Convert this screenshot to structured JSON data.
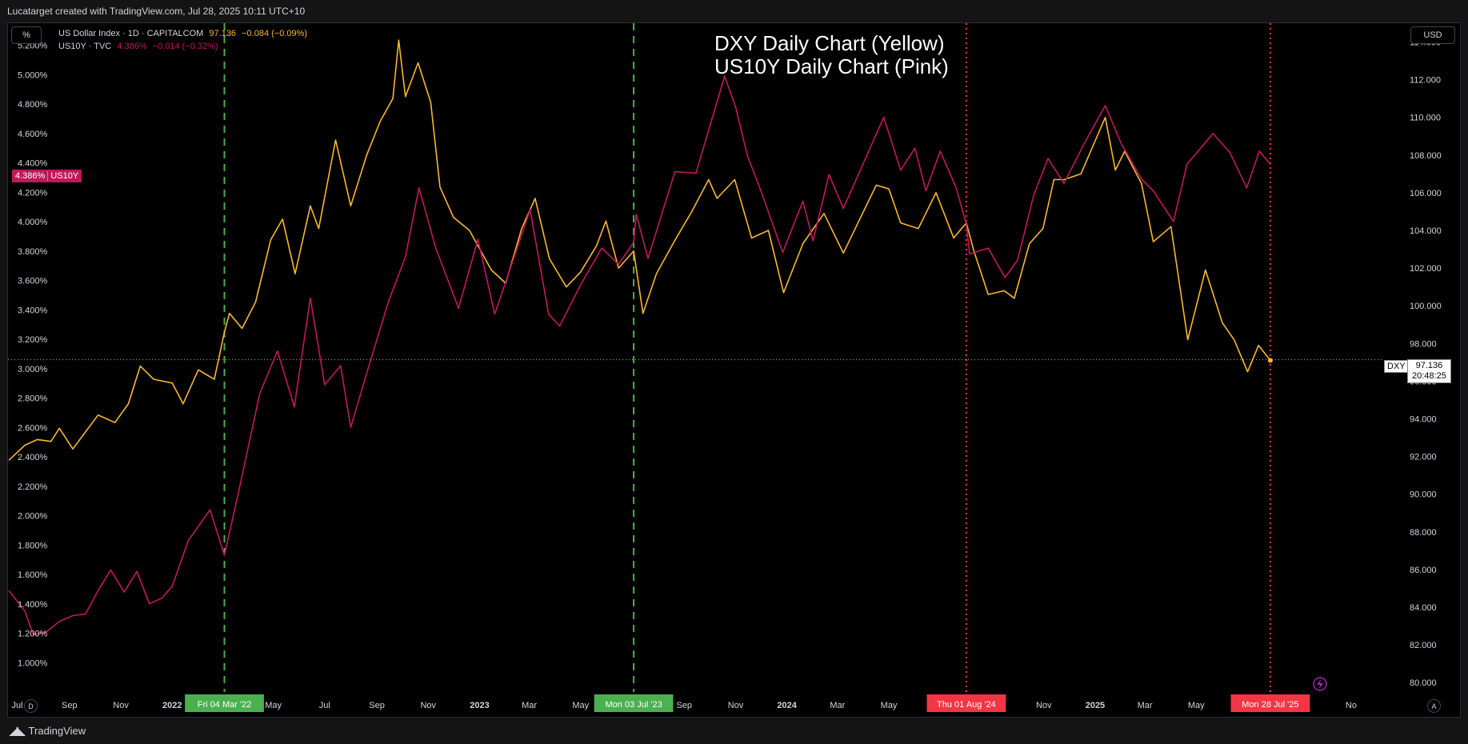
{
  "header": {
    "caption": "Lucatarget created with TradingView.com, Jul 28, 2025 10:11 UTC+10"
  },
  "toolbar": {
    "percent_label": "%",
    "currency_label": "USD",
    "auto_label": "A",
    "goto_label": "D"
  },
  "legend": {
    "dxy": {
      "name": "US Dollar Index · 1D · CAPITALCOM",
      "price": "97.136",
      "change": "−0.084 (−0.09%)"
    },
    "us10y": {
      "name": "US10Y · TVC",
      "price": "4.386%",
      "change": "−0.014 (−0.32%)"
    }
  },
  "annotation": {
    "line1": "DXY Daily Chart (Yellow)",
    "line2": "US10Y Daily Chart (Pink)"
  },
  "price_tags": {
    "us10y_value": "4.386%",
    "us10y_label": "US10Y",
    "dxy_label": "DXY",
    "dxy_value": "97.136",
    "dxy_countdown": "20:48:25"
  },
  "footer": {
    "brand": "TradingView"
  },
  "colors": {
    "dxy": "#f9b82b",
    "us10y": "#c2185b",
    "green_marker": "#4caf50",
    "red_marker": "#f23645",
    "background": "#000000"
  },
  "chart_data": {
    "type": "line",
    "left_axis": {
      "unit": "%",
      "range": [
        0.8,
        5.35
      ],
      "ticks": [
        "1.000%",
        "1.200%",
        "1.400%",
        "1.600%",
        "1.800%",
        "2.000%",
        "2.200%",
        "2.400%",
        "2.600%",
        "2.800%",
        "3.000%",
        "3.200%",
        "3.400%",
        "3.600%",
        "3.800%",
        "4.000%",
        "4.200%",
        "4.400%",
        "4.600%",
        "4.800%",
        "5.000%",
        "5.200%"
      ]
    },
    "right_axis": {
      "unit": "USD",
      "range": [
        79.5,
        115.0
      ],
      "ticks": [
        "80.000",
        "82.000",
        "84.000",
        "86.000",
        "88.000",
        "90.000",
        "92.000",
        "94.000",
        "96.000",
        "98.000",
        "100.000",
        "102.000",
        "104.000",
        "106.000",
        "108.000",
        "110.000",
        "112.000",
        "114.000"
      ]
    },
    "x_axis": {
      "range": [
        "2021-06-20",
        "2025-12-10"
      ],
      "ticks": [
        {
          "date": "2021-07-01",
          "label": "Jul"
        },
        {
          "date": "2021-09-01",
          "label": "Sep"
        },
        {
          "date": "2021-11-01",
          "label": "Nov"
        },
        {
          "date": "2022-01-01",
          "label": "2022"
        },
        {
          "date": "2022-05-01",
          "label": "May"
        },
        {
          "date": "2022-07-01",
          "label": "Jul"
        },
        {
          "date": "2022-09-01",
          "label": "Sep"
        },
        {
          "date": "2022-11-01",
          "label": "Nov"
        },
        {
          "date": "2023-01-01",
          "label": "2023"
        },
        {
          "date": "2023-03-01",
          "label": "Mar"
        },
        {
          "date": "2023-05-01",
          "label": "May"
        },
        {
          "date": "2023-09-01",
          "label": "Sep"
        },
        {
          "date": "2023-11-01",
          "label": "Nov"
        },
        {
          "date": "2024-01-01",
          "label": "2024"
        },
        {
          "date": "2024-03-01",
          "label": "Mar"
        },
        {
          "date": "2024-05-01",
          "label": "May"
        },
        {
          "date": "2024-11-01",
          "label": "Nov"
        },
        {
          "date": "2025-01-01",
          "label": "2025"
        },
        {
          "date": "2025-03-01",
          "label": "Mar"
        },
        {
          "date": "2025-05-01",
          "label": "May"
        },
        {
          "date": "2025-11-01",
          "label": "No"
        }
      ]
    },
    "markers": [
      {
        "date": "2022-03-04",
        "label": "Fri 04 Mar '22",
        "style": "dashed",
        "color": "green"
      },
      {
        "date": "2023-07-03",
        "label": "Mon 03 Jul '23",
        "style": "dashed",
        "color": "green"
      },
      {
        "date": "2024-08-01",
        "label": "Thu 01 Aug '24",
        "style": "dotted",
        "color": "red"
      },
      {
        "date": "2025-07-28",
        "label": "Mon 28 Jul '25",
        "style": "dotted",
        "color": "red"
      }
    ],
    "series": [
      {
        "name": "US Dollar Index · 1D · CAPITALCOM",
        "axis": "right",
        "color": "#f9b82b",
        "points": [
          [
            "2021-06-21",
            91.8
          ],
          [
            "2021-07-10",
            92.6
          ],
          [
            "2021-07-25",
            92.9
          ],
          [
            "2021-08-10",
            92.8
          ],
          [
            "2021-08-20",
            93.5
          ],
          [
            "2021-09-05",
            92.4
          ],
          [
            "2021-09-20",
            93.3
          ],
          [
            "2021-10-05",
            94.2
          ],
          [
            "2021-10-25",
            93.8
          ],
          [
            "2021-11-10",
            94.8
          ],
          [
            "2021-11-24",
            96.8
          ],
          [
            "2021-12-10",
            96.1
          ],
          [
            "2022-01-01",
            95.9
          ],
          [
            "2022-01-14",
            94.8
          ],
          [
            "2022-02-01",
            96.6
          ],
          [
            "2022-02-20",
            96.1
          ],
          [
            "2022-03-04",
            98.6
          ],
          [
            "2022-03-10",
            99.6
          ],
          [
            "2022-03-25",
            98.8
          ],
          [
            "2022-04-10",
            100.2
          ],
          [
            "2022-04-28",
            103.5
          ],
          [
            "2022-05-12",
            104.6
          ],
          [
            "2022-05-27",
            101.7
          ],
          [
            "2022-06-14",
            105.3
          ],
          [
            "2022-06-24",
            104.1
          ],
          [
            "2022-07-14",
            108.8
          ],
          [
            "2022-08-01",
            105.3
          ],
          [
            "2022-08-20",
            108.0
          ],
          [
            "2022-09-05",
            109.8
          ],
          [
            "2022-09-20",
            111.0
          ],
          [
            "2022-09-27",
            114.1
          ],
          [
            "2022-10-05",
            111.1
          ],
          [
            "2022-10-20",
            112.9
          ],
          [
            "2022-11-04",
            110.8
          ],
          [
            "2022-11-15",
            106.3
          ],
          [
            "2022-12-01",
            104.7
          ],
          [
            "2022-12-20",
            104.0
          ],
          [
            "2023-01-15",
            101.9
          ],
          [
            "2023-02-01",
            101.2
          ],
          [
            "2023-02-20",
            104.1
          ],
          [
            "2023-03-08",
            105.7
          ],
          [
            "2023-03-25",
            102.5
          ],
          [
            "2023-04-14",
            101.0
          ],
          [
            "2023-05-01",
            101.8
          ],
          [
            "2023-05-20",
            103.2
          ],
          [
            "2023-05-31",
            104.5
          ],
          [
            "2023-06-15",
            102.0
          ],
          [
            "2023-07-03",
            102.9
          ],
          [
            "2023-07-14",
            99.6
          ],
          [
            "2023-07-30",
            101.7
          ],
          [
            "2023-08-20",
            103.4
          ],
          [
            "2023-09-10",
            105.0
          ],
          [
            "2023-09-30",
            106.7
          ],
          [
            "2023-10-10",
            105.7
          ],
          [
            "2023-10-31",
            106.7
          ],
          [
            "2023-11-20",
            103.6
          ],
          [
            "2023-12-10",
            104.0
          ],
          [
            "2023-12-28",
            100.7
          ],
          [
            "2024-01-20",
            103.3
          ],
          [
            "2024-02-14",
            104.9
          ],
          [
            "2024-03-08",
            102.8
          ],
          [
            "2024-04-16",
            106.4
          ],
          [
            "2024-05-01",
            106.2
          ],
          [
            "2024-05-15",
            104.4
          ],
          [
            "2024-06-05",
            104.1
          ],
          [
            "2024-06-26",
            106.0
          ],
          [
            "2024-07-17",
            103.6
          ],
          [
            "2024-08-01",
            104.4
          ],
          [
            "2024-08-10",
            102.9
          ],
          [
            "2024-08-27",
            100.6
          ],
          [
            "2024-09-15",
            100.8
          ],
          [
            "2024-09-27",
            100.4
          ],
          [
            "2024-10-15",
            103.3
          ],
          [
            "2024-10-31",
            104.1
          ],
          [
            "2024-11-13",
            106.7
          ],
          [
            "2024-11-25",
            106.7
          ],
          [
            "2024-12-15",
            107.0
          ],
          [
            "2025-01-13",
            110.0
          ],
          [
            "2025-01-25",
            107.2
          ],
          [
            "2025-02-05",
            108.2
          ],
          [
            "2025-02-25",
            106.5
          ],
          [
            "2025-03-11",
            103.4
          ],
          [
            "2025-04-01",
            104.2
          ],
          [
            "2025-04-21",
            98.2
          ],
          [
            "2025-05-12",
            101.9
          ],
          [
            "2025-06-01",
            99.1
          ],
          [
            "2025-06-15",
            98.2
          ],
          [
            "2025-07-01",
            96.5
          ],
          [
            "2025-07-14",
            97.9
          ],
          [
            "2025-07-28",
            97.1
          ]
        ]
      },
      {
        "name": "US10Y · TVC",
        "axis": "left",
        "color": "#c2185b",
        "points": [
          [
            "2021-06-21",
            1.49
          ],
          [
            "2021-07-10",
            1.35
          ],
          [
            "2021-07-20",
            1.19
          ],
          [
            "2021-08-05",
            1.21
          ],
          [
            "2021-08-20",
            1.28
          ],
          [
            "2021-09-05",
            1.32
          ],
          [
            "2021-09-20",
            1.33
          ],
          [
            "2021-10-05",
            1.49
          ],
          [
            "2021-10-20",
            1.63
          ],
          [
            "2021-11-05",
            1.48
          ],
          [
            "2021-11-20",
            1.62
          ],
          [
            "2021-12-05",
            1.4
          ],
          [
            "2021-12-20",
            1.44
          ],
          [
            "2022-01-01",
            1.52
          ],
          [
            "2022-01-20",
            1.83
          ],
          [
            "2022-02-15",
            2.04
          ],
          [
            "2022-03-04",
            1.73
          ],
          [
            "2022-03-20",
            2.14
          ],
          [
            "2022-04-15",
            2.83
          ],
          [
            "2022-05-06",
            3.12
          ],
          [
            "2022-05-26",
            2.74
          ],
          [
            "2022-06-14",
            3.48
          ],
          [
            "2022-07-01",
            2.89
          ],
          [
            "2022-07-20",
            3.02
          ],
          [
            "2022-08-01",
            2.6
          ],
          [
            "2022-08-20",
            2.97
          ],
          [
            "2022-09-15",
            3.46
          ],
          [
            "2022-10-05",
            3.76
          ],
          [
            "2022-10-21",
            4.23
          ],
          [
            "2022-11-10",
            3.82
          ],
          [
            "2022-12-07",
            3.41
          ],
          [
            "2022-12-30",
            3.88
          ],
          [
            "2023-01-19",
            3.37
          ],
          [
            "2023-03-02",
            4.08
          ],
          [
            "2023-03-24",
            3.37
          ],
          [
            "2023-04-06",
            3.29
          ],
          [
            "2023-05-01",
            3.57
          ],
          [
            "2023-05-26",
            3.82
          ],
          [
            "2023-06-15",
            3.71
          ],
          [
            "2023-07-03",
            3.86
          ],
          [
            "2023-07-06",
            4.05
          ],
          [
            "2023-07-20",
            3.75
          ],
          [
            "2023-08-21",
            4.34
          ],
          [
            "2023-09-15",
            4.33
          ],
          [
            "2023-10-19",
            4.99
          ],
          [
            "2023-11-01",
            4.78
          ],
          [
            "2023-11-15",
            4.45
          ],
          [
            "2023-12-01",
            4.21
          ],
          [
            "2023-12-27",
            3.79
          ],
          [
            "2024-01-20",
            4.14
          ],
          [
            "2024-02-01",
            3.87
          ],
          [
            "2024-02-20",
            4.32
          ],
          [
            "2024-03-08",
            4.09
          ],
          [
            "2024-04-25",
            4.71
          ],
          [
            "2024-05-15",
            4.35
          ],
          [
            "2024-06-01",
            4.5
          ],
          [
            "2024-06-14",
            4.21
          ],
          [
            "2024-07-01",
            4.48
          ],
          [
            "2024-07-20",
            4.23
          ],
          [
            "2024-08-01",
            3.98
          ],
          [
            "2024-08-05",
            3.78
          ],
          [
            "2024-08-27",
            3.82
          ],
          [
            "2024-09-16",
            3.62
          ],
          [
            "2024-10-01",
            3.74
          ],
          [
            "2024-10-20",
            4.18
          ],
          [
            "2024-11-06",
            4.43
          ],
          [
            "2024-11-25",
            4.26
          ],
          [
            "2024-12-18",
            4.52
          ],
          [
            "2025-01-13",
            4.79
          ],
          [
            "2025-02-01",
            4.53
          ],
          [
            "2025-02-25",
            4.29
          ],
          [
            "2025-03-11",
            4.21
          ],
          [
            "2025-04-04",
            4.0
          ],
          [
            "2025-04-20",
            4.39
          ],
          [
            "2025-05-21",
            4.6
          ],
          [
            "2025-06-10",
            4.47
          ],
          [
            "2025-06-30",
            4.23
          ],
          [
            "2025-07-15",
            4.48
          ],
          [
            "2025-07-28",
            4.39
          ]
        ]
      }
    ],
    "last_value_line": {
      "axis": "right",
      "value": 97.136
    }
  }
}
